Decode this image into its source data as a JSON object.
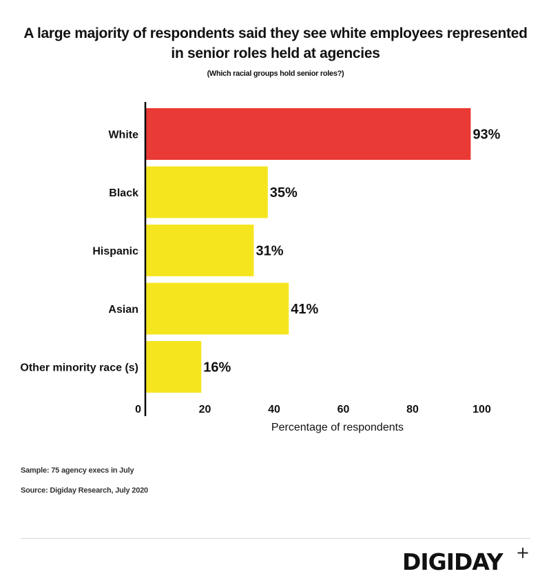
{
  "chart_data": {
    "type": "bar",
    "orientation": "horizontal",
    "title": "A large majority of respondents said they see white employees represented in senior roles held at agencies",
    "title_lines": [
      "A large majority of respondents said they see white employees represented",
      "in senior roles held at agencies"
    ],
    "subtitle": "(Which racial groups hold senior roles?)",
    "categories": [
      "White",
      "Black",
      "Hispanic",
      "Asian",
      "Other minority race (s)"
    ],
    "values": [
      93,
      35,
      31,
      41,
      16
    ],
    "value_labels": [
      "93%",
      "35%",
      "31%",
      "41%",
      "16%"
    ],
    "colors": [
      "#E93A35",
      "#F5E51F",
      "#F5E51F",
      "#F5E51F",
      "#F5E51F"
    ],
    "xlabel": "Percentage of respondents",
    "ylabel": "",
    "xlim": [
      0,
      100
    ],
    "xticks": [
      0,
      20,
      40,
      60,
      80,
      100
    ],
    "xtick_labels": [
      "0",
      "20",
      "40",
      "60",
      "80",
      "100"
    ],
    "grid": false,
    "legend": "none"
  },
  "notes": {
    "sample": "Sample: 75 agency execs in July",
    "source": "Source: Digiday Research, July 2020"
  },
  "brand": {
    "logo_text": "DIGIDAY",
    "logo_suffix": "+"
  }
}
